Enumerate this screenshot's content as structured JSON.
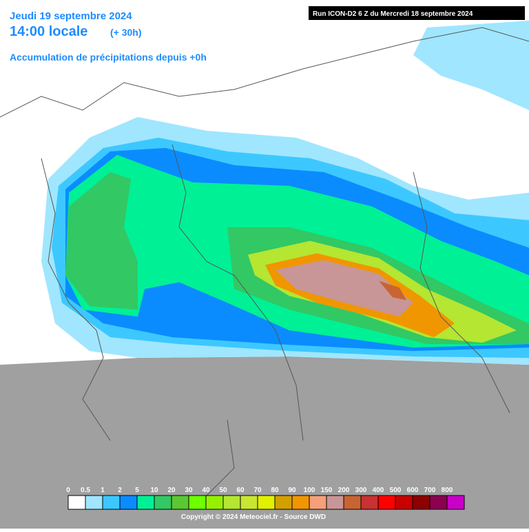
{
  "header": {
    "date": "Jeudi 19 septembre 2024",
    "time": "14:00 locale",
    "lead": "(+ 30h)",
    "subtitle": "Accumulation de précipitations depuis +0h",
    "run": "Run ICON-D2 6 Z du Mercredi 18 septembre 2024"
  },
  "legend": {
    "items": [
      {
        "label": "0",
        "color": "#ffffff"
      },
      {
        "label": "0.5",
        "color": "#a0e6ff"
      },
      {
        "label": "1",
        "color": "#3cc8ff"
      },
      {
        "label": "2",
        "color": "#0a8cff"
      },
      {
        "label": "5",
        "color": "#00f096"
      },
      {
        "label": "10",
        "color": "#32c864"
      },
      {
        "label": "20",
        "color": "#5ac832"
      },
      {
        "label": "30",
        "color": "#6eff00"
      },
      {
        "label": "40",
        "color": "#96f000"
      },
      {
        "label": "50",
        "color": "#b4e632"
      },
      {
        "label": "60",
        "color": "#c8e632"
      },
      {
        "label": "70",
        "color": "#e1f000"
      },
      {
        "label": "80",
        "color": "#d2a000"
      },
      {
        "label": "90",
        "color": "#f09600"
      },
      {
        "label": "100",
        "color": "#f5a078"
      },
      {
        "label": "150",
        "color": "#c89696"
      },
      {
        "label": "200",
        "color": "#c86432"
      },
      {
        "label": "300",
        "color": "#c83232"
      },
      {
        "label": "400",
        "color": "#ff0000"
      },
      {
        "label": "500",
        "color": "#c80000"
      },
      {
        "label": "600",
        "color": "#8c0000"
      },
      {
        "label": "700",
        "color": "#8c0050"
      },
      {
        "label": "800",
        "color": "#c800c8"
      }
    ]
  },
  "footer": {
    "copyright": "Copyright © 2024 Meteociel.fr - Source DWD"
  }
}
